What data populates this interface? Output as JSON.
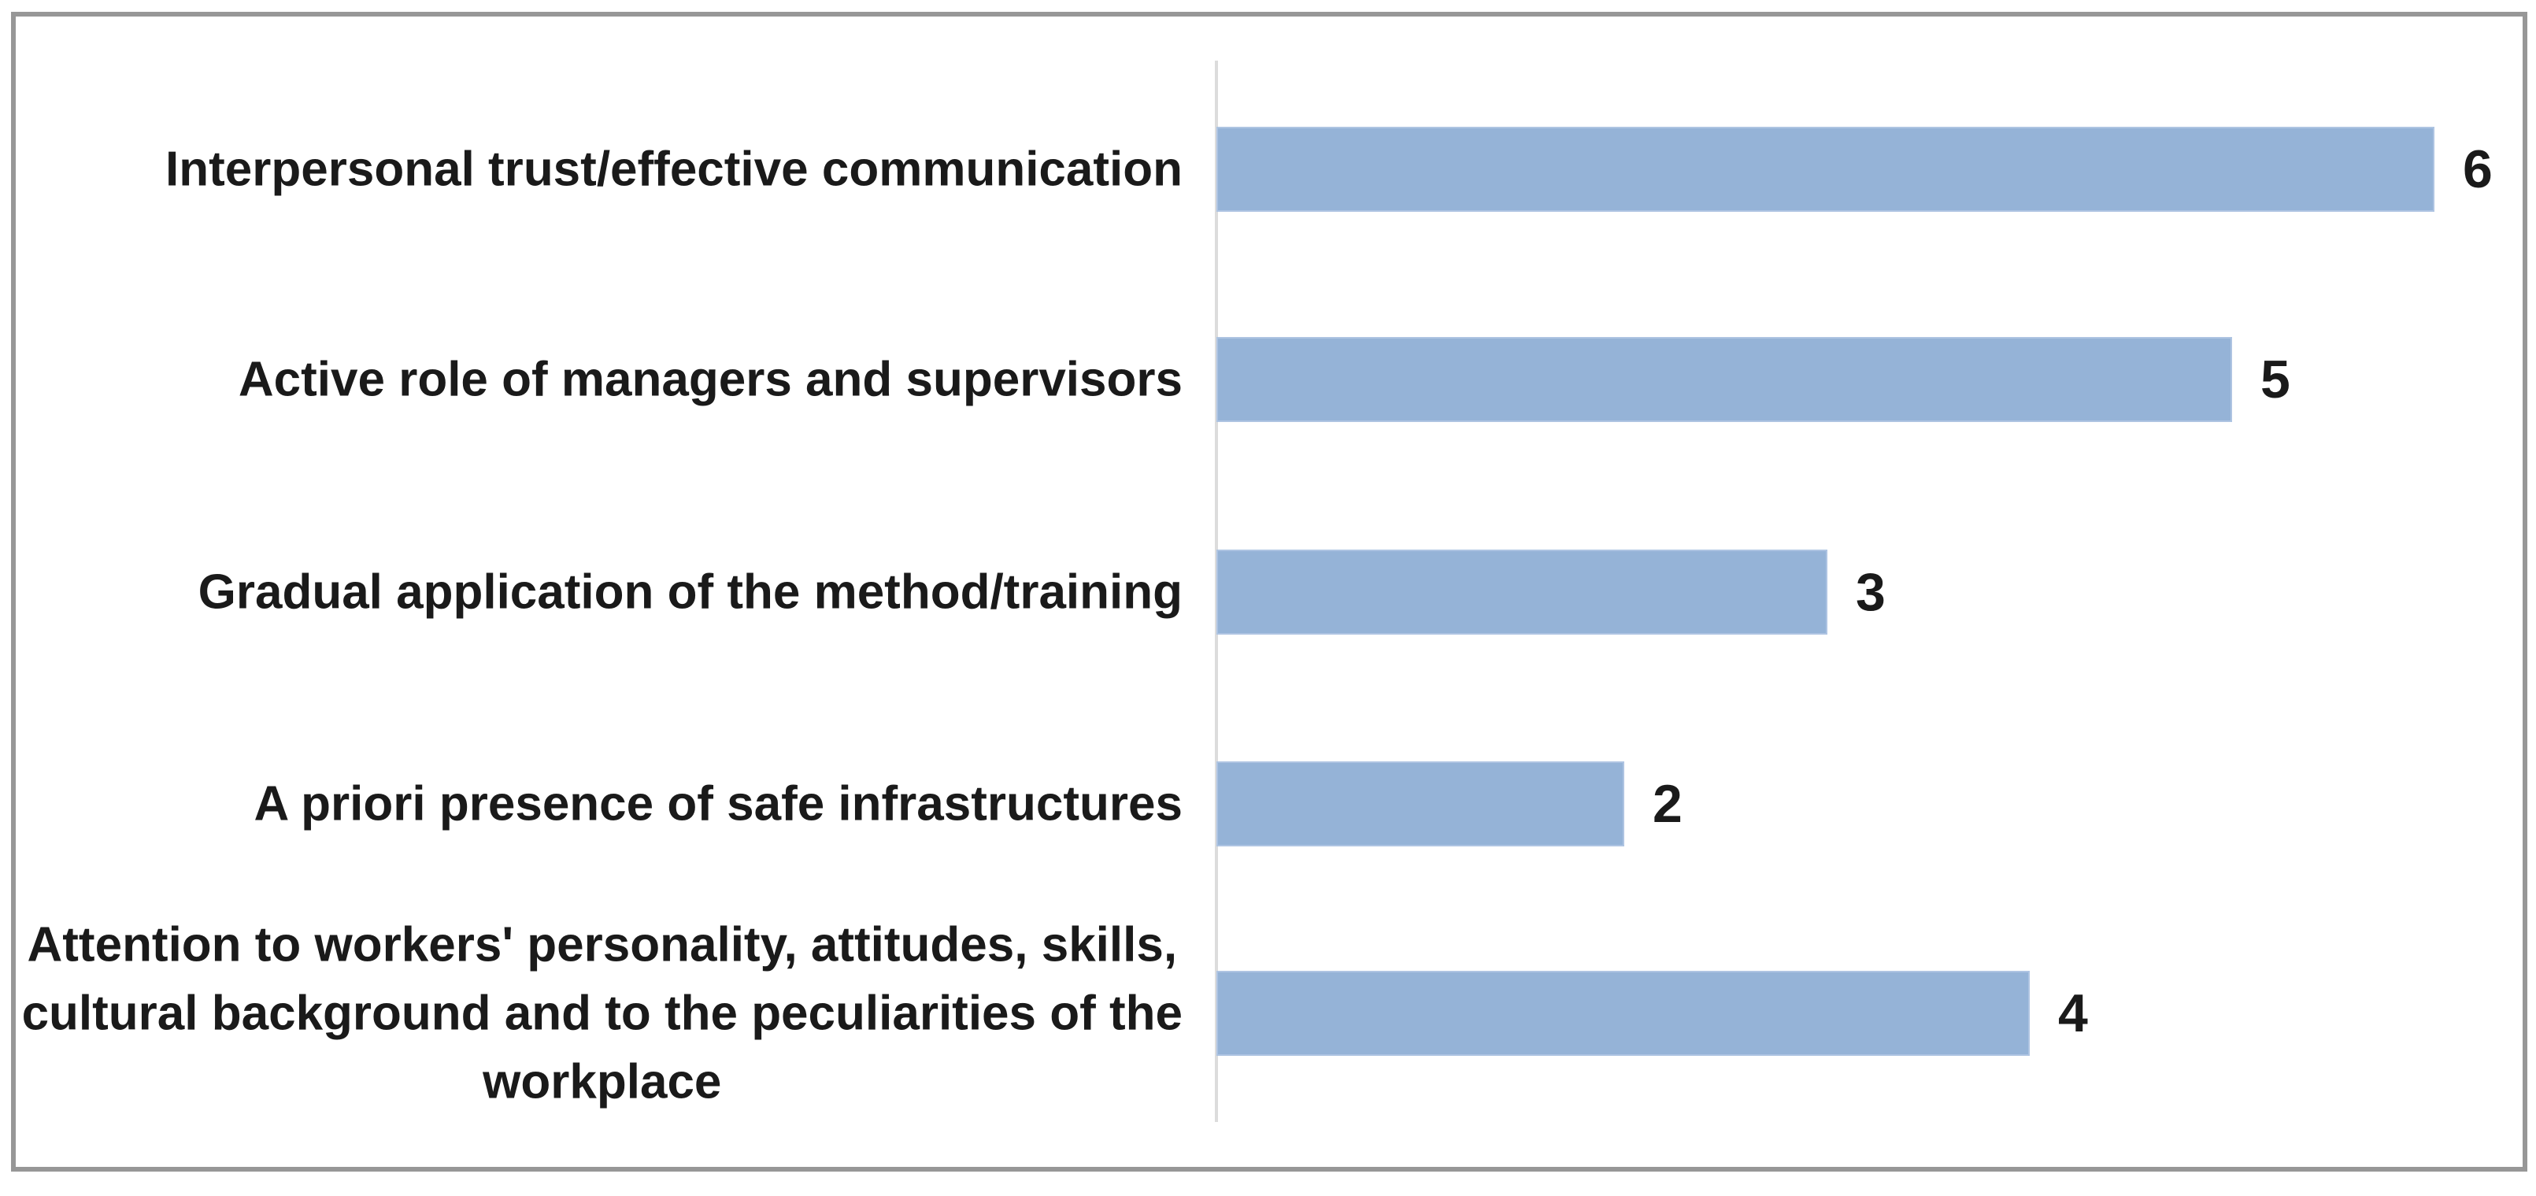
{
  "chart_data": {
    "type": "bar",
    "orientation": "horizontal",
    "title": "",
    "xlabel": "",
    "ylabel": "",
    "grid": false,
    "legend": false,
    "xlim": [
      0,
      6.5
    ],
    "categories": [
      "Interpersonal trust/effective communication",
      "Active role of managers and supervisors",
      "Gradual application of the method/training",
      "A priori presence of safe infrastructures",
      "Attention to workers' personality, attitudes, skills,\ncultural background and to the peculiarities of the\nworkplace"
    ],
    "values": [
      6,
      5,
      3,
      2,
      4
    ],
    "value_labels": [
      "6",
      "5",
      "3",
      "2",
      "4"
    ],
    "colors": {
      "bar_fill": "#95b3d7",
      "bar_edge": "#aec4e2",
      "axis_line": "#dcdcdc",
      "frame_border": "#979797",
      "text": "#1a1a1a",
      "background": "#ffffff"
    }
  }
}
